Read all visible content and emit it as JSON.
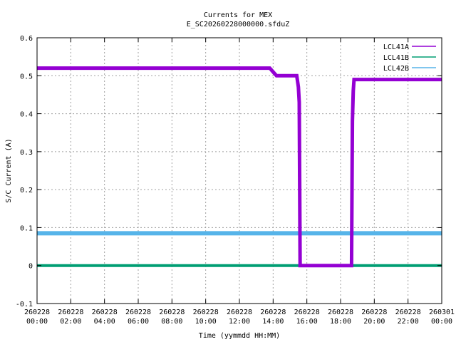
{
  "chart_data": {
    "type": "line",
    "title": "Currents for MEX",
    "subtitle": "E_SC20260228000000.sfduZ",
    "xlabel": "Time (yymmdd HH:MM)",
    "ylabel": "S/C Current (A)",
    "xlim_hours": [
      0,
      24
    ],
    "ylim": [
      -0.1,
      0.6
    ],
    "yticks": [
      "-0.1",
      "0",
      "0.1",
      "0.2",
      "0.3",
      "0.4",
      "0.5",
      "0.6"
    ],
    "xticks": [
      {
        "date": "260228",
        "time": "00:00"
      },
      {
        "date": "260228",
        "time": "02:00"
      },
      {
        "date": "260228",
        "time": "04:00"
      },
      {
        "date": "260228",
        "time": "06:00"
      },
      {
        "date": "260228",
        "time": "08:00"
      },
      {
        "date": "260228",
        "time": "10:00"
      },
      {
        "date": "260228",
        "time": "12:00"
      },
      {
        "date": "260228",
        "time": "14:00"
      },
      {
        "date": "260228",
        "time": "16:00"
      },
      {
        "date": "260228",
        "time": "18:00"
      },
      {
        "date": "260228",
        "time": "20:00"
      },
      {
        "date": "260228",
        "time": "22:00"
      },
      {
        "date": "260301",
        "time": "00:00"
      }
    ],
    "grid": true,
    "legend_position": "top-right",
    "series": [
      {
        "name": "LCL41A",
        "color": "#9400d3",
        "points": [
          [
            0.0,
            0.52
          ],
          [
            1.0,
            0.52
          ],
          [
            2.0,
            0.52
          ],
          [
            3.0,
            0.52
          ],
          [
            4.0,
            0.52
          ],
          [
            5.0,
            0.52
          ],
          [
            6.0,
            0.52
          ],
          [
            7.0,
            0.52
          ],
          [
            8.0,
            0.52
          ],
          [
            9.0,
            0.52
          ],
          [
            10.0,
            0.52
          ],
          [
            11.0,
            0.52
          ],
          [
            12.0,
            0.52
          ],
          [
            13.0,
            0.52
          ],
          [
            13.8,
            0.52
          ],
          [
            14.2,
            0.5
          ],
          [
            15.0,
            0.5
          ],
          [
            15.4,
            0.5
          ],
          [
            15.5,
            0.47
          ],
          [
            15.55,
            0.43
          ],
          [
            15.6,
            0.0
          ],
          [
            16.0,
            0.0
          ],
          [
            17.0,
            0.0
          ],
          [
            18.0,
            0.0
          ],
          [
            18.65,
            0.0
          ],
          [
            18.7,
            0.38
          ],
          [
            18.75,
            0.46
          ],
          [
            18.8,
            0.49
          ],
          [
            19.5,
            0.49
          ],
          [
            20.0,
            0.49
          ],
          [
            21.0,
            0.49
          ],
          [
            22.0,
            0.49
          ],
          [
            23.0,
            0.49
          ],
          [
            24.0,
            0.49
          ]
        ]
      },
      {
        "name": "LCL41B",
        "color": "#009e73",
        "points": [
          [
            0.0,
            0.0
          ],
          [
            2.0,
            0.0
          ],
          [
            4.0,
            0.0
          ],
          [
            6.0,
            0.0
          ],
          [
            8.0,
            0.0
          ],
          [
            10.0,
            0.0
          ],
          [
            12.0,
            0.0
          ],
          [
            14.0,
            0.0
          ],
          [
            16.0,
            0.0
          ],
          [
            18.0,
            0.0
          ],
          [
            20.0,
            0.0
          ],
          [
            22.0,
            0.0
          ],
          [
            24.0,
            0.0
          ]
        ]
      },
      {
        "name": "LCL42B",
        "color": "#56b4e9",
        "points": [
          [
            0.0,
            0.085
          ],
          [
            2.0,
            0.085
          ],
          [
            4.0,
            0.085
          ],
          [
            6.0,
            0.085
          ],
          [
            8.0,
            0.085
          ],
          [
            10.0,
            0.085
          ],
          [
            12.0,
            0.085
          ],
          [
            14.0,
            0.085
          ],
          [
            16.0,
            0.085
          ],
          [
            18.0,
            0.085
          ],
          [
            20.0,
            0.085
          ],
          [
            22.0,
            0.085
          ],
          [
            24.0,
            0.085
          ]
        ]
      }
    ]
  }
}
